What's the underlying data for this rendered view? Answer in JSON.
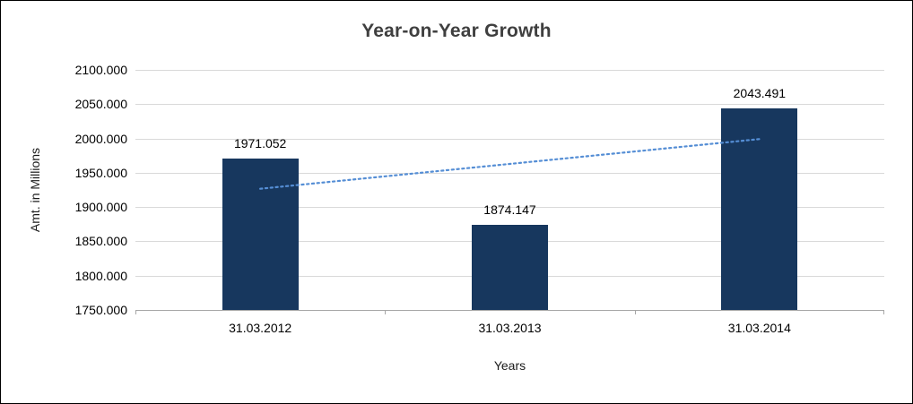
{
  "chart_data": {
    "type": "bar",
    "title": "Year-on-Year Growth",
    "xlabel": "Years",
    "ylabel": "Amt. in Millions",
    "categories": [
      "31.03.2012",
      "31.03.2013",
      "31.03.2014"
    ],
    "values": [
      1971.052,
      1874.147,
      2043.491
    ],
    "data_labels": [
      "1971.052",
      "1874.147",
      "2043.491"
    ],
    "ylim": [
      1750,
      2100
    ],
    "ytick_step": 50,
    "ytick_labels": [
      "1750.000",
      "1800.000",
      "1850.000",
      "1900.000",
      "1950.000",
      "2000.000",
      "2050.000",
      "2100.000"
    ],
    "grid": true,
    "legend": "none",
    "bar_color": "#17375E",
    "gridline_color": "#D9D9D9",
    "trendline": {
      "type": "linear",
      "style": "dotted",
      "color": "#558ED5",
      "start_value": 1926.68,
      "end_value": 1999.12
    }
  }
}
